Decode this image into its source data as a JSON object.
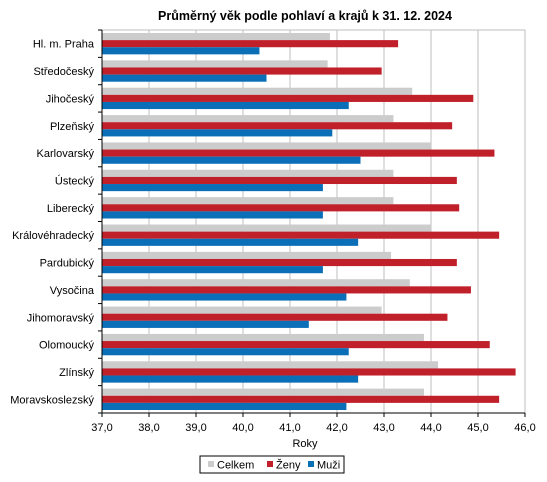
{
  "chart_data": {
    "type": "bar",
    "orientation": "horizontal",
    "title": "Průměrný věk podle pohlaví a krajů k 31. 12. 2024",
    "xlabel": "Roky",
    "ylabel": "",
    "xlim": [
      37.0,
      46.0
    ],
    "x_ticks": [
      "37,0",
      "38,0",
      "39,0",
      "40,0",
      "41,0",
      "42,0",
      "43,0",
      "44,0",
      "45,0",
      "46,0"
    ],
    "grid": true,
    "legend_position": "bottom",
    "categories": [
      "Hl. m. Praha",
      "Středočeský",
      "Jihočeský",
      "Plzeňský",
      "Karlovarský",
      "Ústecký",
      "Liberecký",
      "Královéhradecký",
      "Pardubický",
      "Vysočina",
      "Jihomoravský",
      "Olomoucký",
      "Zlínský",
      "Moravskoslezský"
    ],
    "series": [
      {
        "name": "Celkem",
        "color": "#cccccc",
        "values": [
          41.85,
          41.8,
          43.6,
          43.2,
          44.0,
          43.2,
          43.2,
          44.0,
          43.15,
          43.55,
          42.95,
          43.85,
          44.15,
          43.85
        ]
      },
      {
        "name": "Ženy",
        "color": "#c0202a",
        "values": [
          43.3,
          42.95,
          44.9,
          44.45,
          45.35,
          44.55,
          44.6,
          45.45,
          44.55,
          44.85,
          44.35,
          45.25,
          45.8,
          45.45
        ]
      },
      {
        "name": "Muži",
        "color": "#0b6fb8",
        "values": [
          40.35,
          40.5,
          42.25,
          41.9,
          42.5,
          41.7,
          41.7,
          42.45,
          41.7,
          42.2,
          41.4,
          42.25,
          42.45,
          42.2
        ]
      }
    ]
  }
}
